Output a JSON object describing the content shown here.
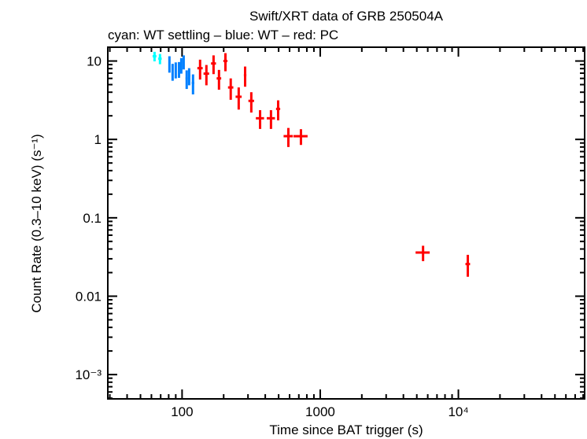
{
  "chart_data": {
    "type": "scatter",
    "title": "Swift/XRT data of GRB 250504A",
    "subtitle": "cyan: WT settling – blue: WT – red: PC",
    "xlabel": "Time since BAT trigger (s)",
    "ylabel": "Count Rate (0.3–10 keV) (s⁻¹)",
    "xscale": "log",
    "yscale": "log",
    "xlim": [
      29,
      82000
    ],
    "ylim": [
      0.00049,
      15
    ],
    "grid": false,
    "x_ticks": [
      {
        "value": 100,
        "label": "100"
      },
      {
        "value": 1000,
        "label": "1000"
      },
      {
        "value": 10000,
        "label": "10⁴"
      }
    ],
    "y_ticks": [
      {
        "value": 10,
        "label": "10"
      },
      {
        "value": 1,
        "label": "1"
      },
      {
        "value": 0.1,
        "label": "0.1"
      },
      {
        "value": 0.01,
        "label": "0.01"
      },
      {
        "value": 0.001,
        "label": "10⁻³"
      }
    ],
    "series": [
      {
        "mode": "WT settling",
        "color": "#00ffff",
        "points": [
          [
            63.2,
            2,
            11.5,
            1.6
          ],
          [
            69.2,
            2,
            10.7,
            1.6
          ]
        ]
      },
      {
        "mode": "WT",
        "color": "#0080ff",
        "points": [
          [
            81,
            1.2,
            9.3,
            2.2
          ],
          [
            85.4,
            1.2,
            7.4,
            1.8
          ],
          [
            90,
            1.2,
            7.8,
            1.8
          ],
          [
            95,
            1.2,
            7.9,
            1.8
          ],
          [
            98.7,
            1.2,
            8.9,
            2.0
          ],
          [
            102.7,
            1.5,
            9.8,
            2.0
          ],
          [
            108,
            2,
            6.0,
            1.6
          ],
          [
            112.5,
            2,
            6.5,
            1.6
          ],
          [
            120,
            2.5,
            5.25,
            1.5
          ]
        ]
      },
      {
        "mode": "PC",
        "color": "#ff0000",
        "points": [
          [
            135,
            6,
            8.1,
            2.3
          ],
          [
            150,
            7,
            6.9,
            2.0
          ],
          [
            169,
            7,
            9.3,
            2.5
          ],
          [
            185,
            7,
            6.0,
            1.7
          ],
          [
            206,
            7,
            10,
            2.6
          ],
          [
            225,
            10,
            4.6,
            1.4
          ],
          [
            257,
            13,
            3.5,
            1.1
          ],
          [
            286,
            6,
            6.6,
            1.9
          ],
          [
            317,
            15,
            3.1,
            0.9
          ],
          [
            367,
            25,
            1.86,
            0.5
          ],
          [
            440,
            30,
            1.86,
            0.5
          ],
          [
            496,
            17,
            2.45,
            0.7
          ],
          [
            588,
            45,
            1.1,
            0.3
          ],
          [
            725,
            85,
            1.1,
            0.25
          ],
          [
            5550,
            650,
            0.036,
            0.008
          ],
          [
            11700,
            450,
            0.0257,
            0.008
          ]
        ]
      }
    ]
  }
}
